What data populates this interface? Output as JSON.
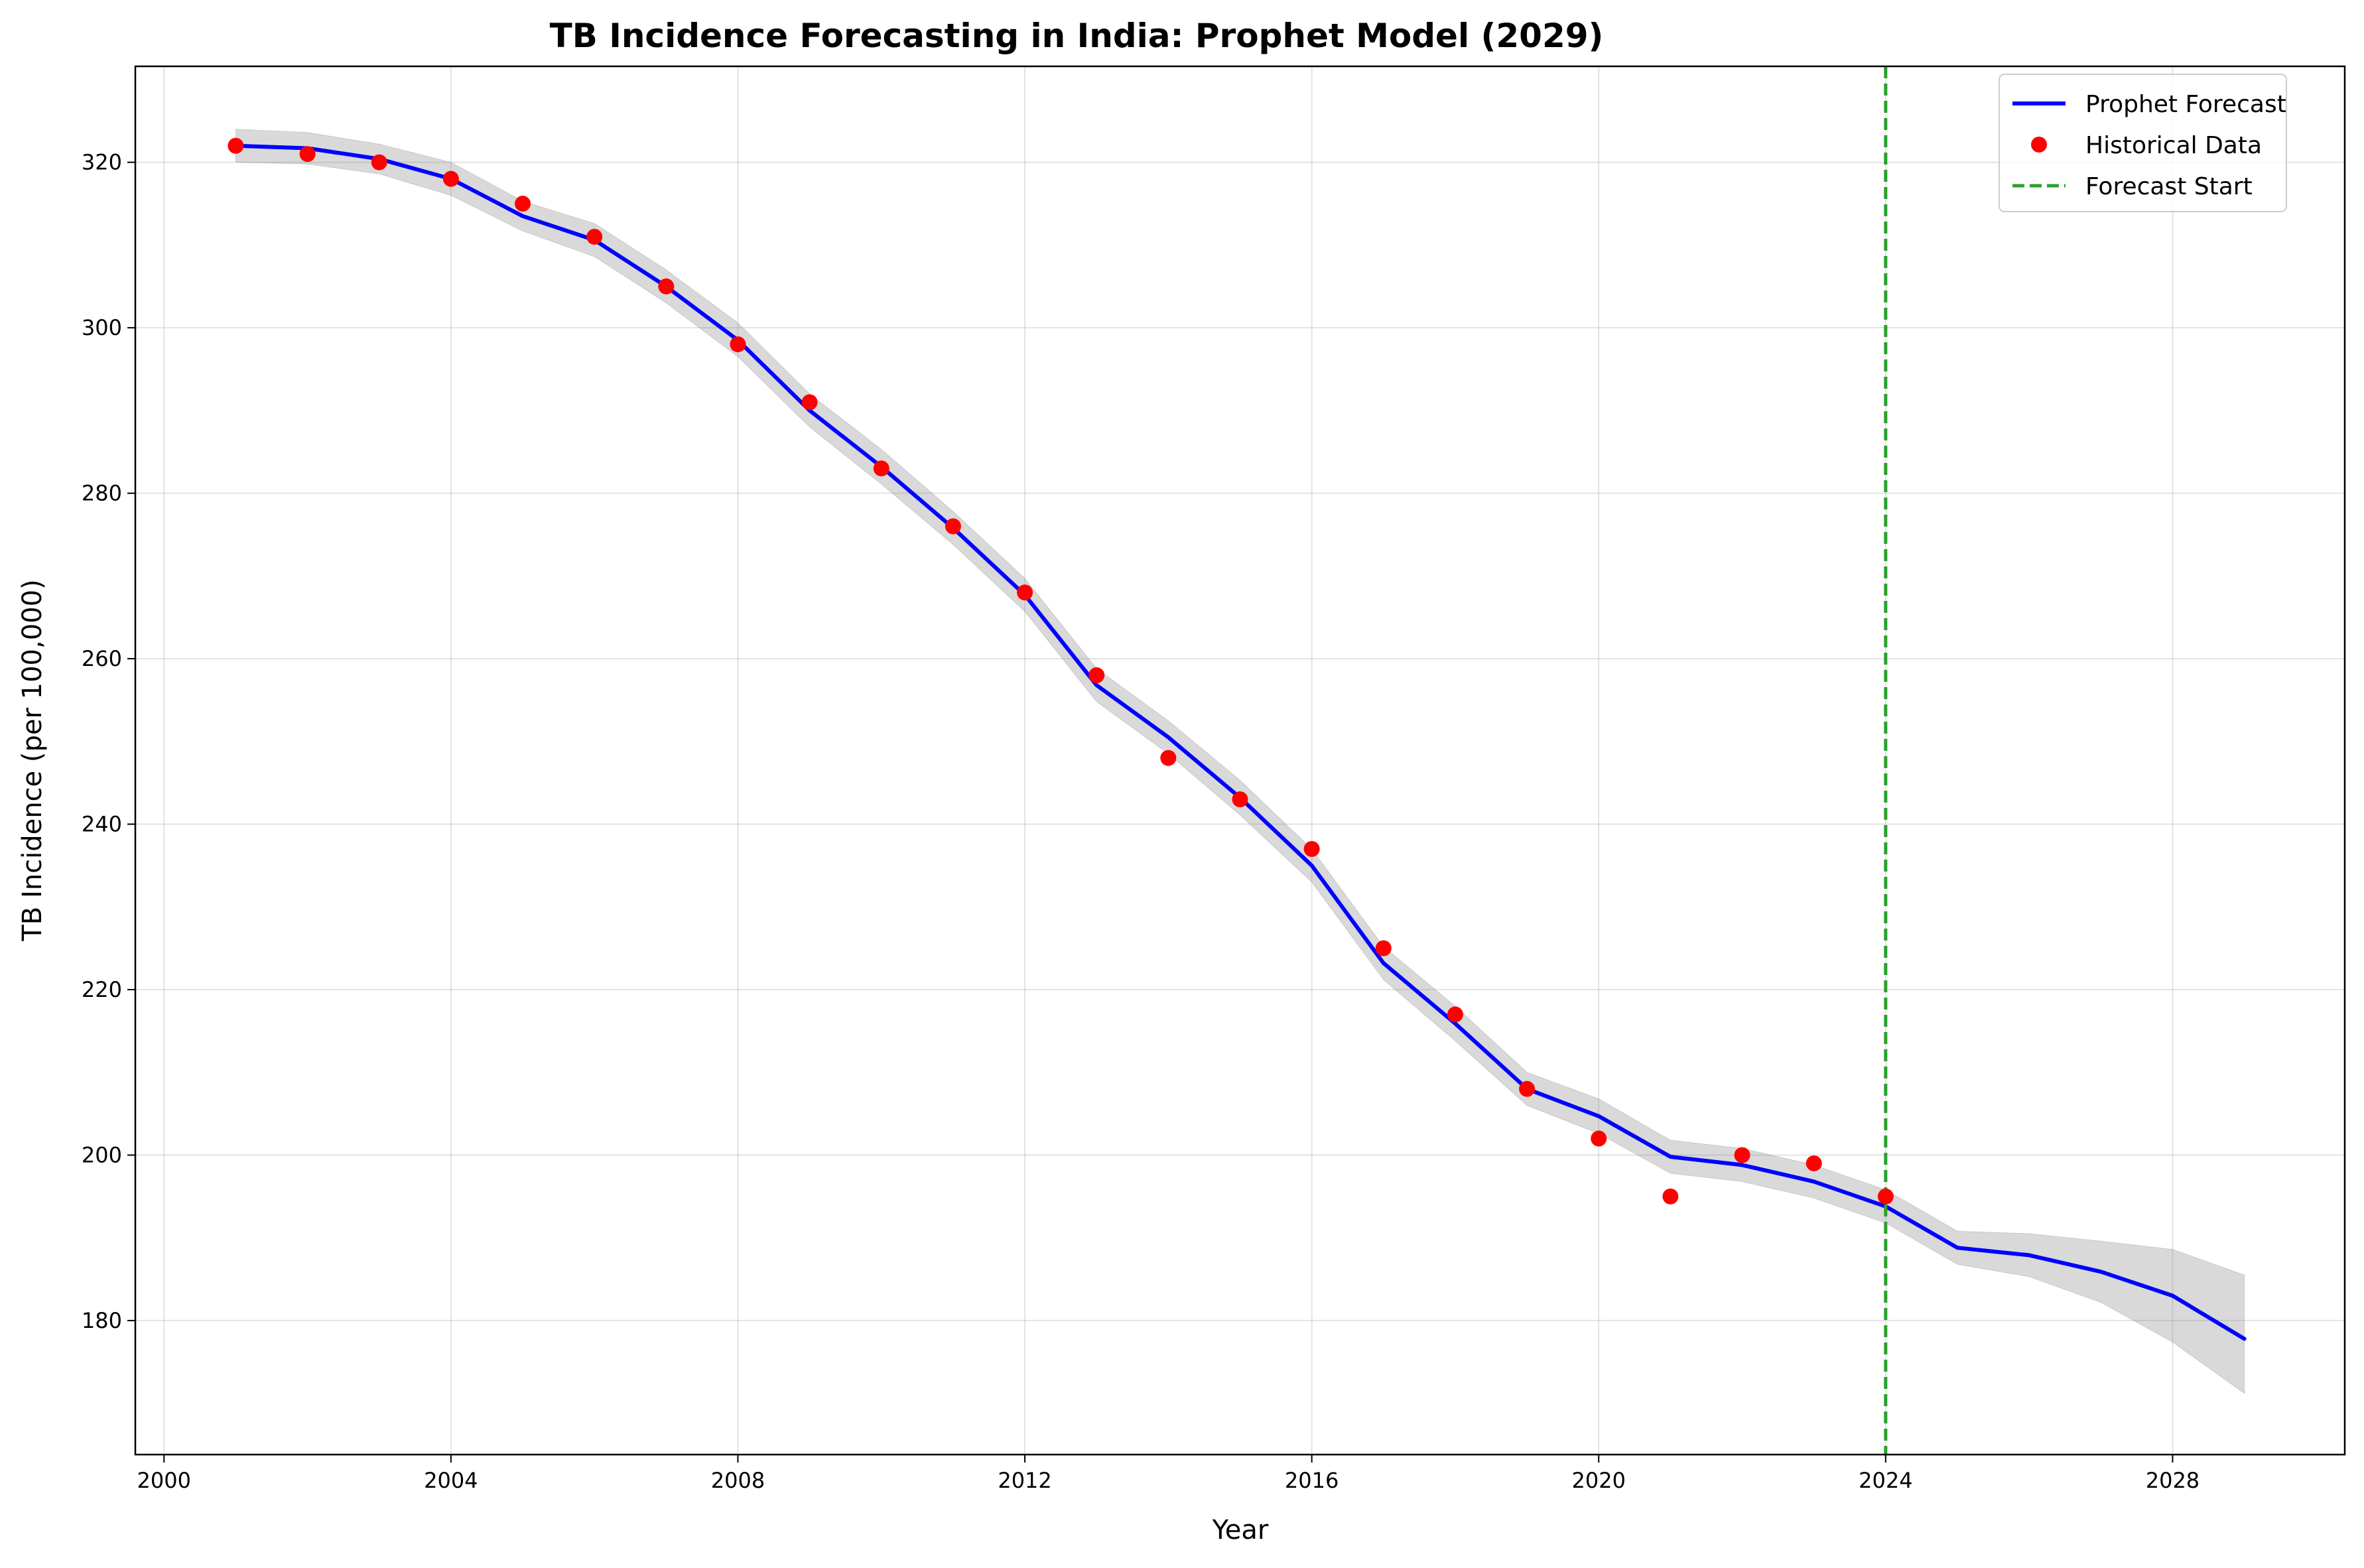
{
  "chart_data": {
    "type": "line",
    "title": "TB Incidence Forecasting in India: Prophet Model (2029)",
    "xlabel": "Year",
    "ylabel": "TB Incidence (per 100,000)",
    "xlim": [
      1999.6,
      2030.4
    ],
    "ylim": [
      163.8,
      331.6
    ],
    "xticks": [
      2000,
      2004,
      2008,
      2012,
      2016,
      2020,
      2024,
      2028
    ],
    "yticks": [
      180,
      200,
      220,
      240,
      260,
      280,
      300,
      320
    ],
    "grid": true,
    "legend_position": "top-right",
    "series": [
      {
        "name": "Prophet Forecast",
        "kind": "line",
        "color": "#0000ff",
        "x": [
          2001,
          2002,
          2003,
          2004,
          2005,
          2006,
          2007,
          2008,
          2009,
          2010,
          2011,
          2012,
          2013,
          2014,
          2015,
          2016,
          2017,
          2018,
          2019,
          2020,
          2021,
          2022,
          2023,
          2024,
          2025,
          2026,
          2027,
          2028,
          2029
        ],
        "y": [
          322.0,
          321.7,
          320.4,
          318.0,
          313.5,
          310.6,
          305.0,
          298.5,
          290.0,
          283.2,
          275.8,
          267.7,
          256.8,
          250.5,
          243.2,
          235.0,
          223.2,
          215.9,
          208.0,
          204.7,
          199.8,
          198.8,
          196.8,
          193.8,
          188.8,
          187.9,
          185.9,
          183.0,
          177.8
        ],
        "band_upper": [
          324.0,
          323.6,
          322.2,
          320.0,
          315.3,
          312.6,
          307.0,
          300.6,
          292.0,
          285.3,
          277.8,
          269.7,
          258.8,
          252.5,
          245.3,
          237.0,
          225.2,
          218.0,
          210.0,
          206.8,
          201.8,
          200.8,
          198.8,
          195.8,
          190.8,
          190.5,
          189.6,
          188.6,
          185.5
        ],
        "band_lower": [
          320.0,
          319.8,
          318.6,
          316.0,
          311.7,
          308.6,
          303.0,
          296.5,
          288.0,
          281.1,
          273.8,
          265.7,
          254.8,
          248.5,
          241.1,
          233.0,
          221.2,
          213.8,
          206.0,
          202.6,
          197.8,
          196.8,
          194.8,
          191.8,
          186.8,
          185.3,
          182.2,
          177.4,
          171.2
        ]
      },
      {
        "name": "Historical Data",
        "kind": "scatter",
        "color": "#ff0000",
        "x": [
          2001,
          2002,
          2003,
          2004,
          2005,
          2006,
          2007,
          2008,
          2009,
          2010,
          2011,
          2012,
          2013,
          2014,
          2015,
          2016,
          2017,
          2018,
          2019,
          2020,
          2021,
          2022,
          2023,
          2024
        ],
        "y": [
          322,
          321,
          320,
          318,
          315,
          311,
          305,
          298,
          291,
          283,
          276,
          268,
          258,
          248,
          243,
          237,
          225,
          217,
          208,
          202,
          195,
          200,
          199,
          195
        ]
      },
      {
        "name": "Forecast Start",
        "kind": "vline",
        "color": "#2ca02c",
        "x": 2024
      }
    ]
  }
}
